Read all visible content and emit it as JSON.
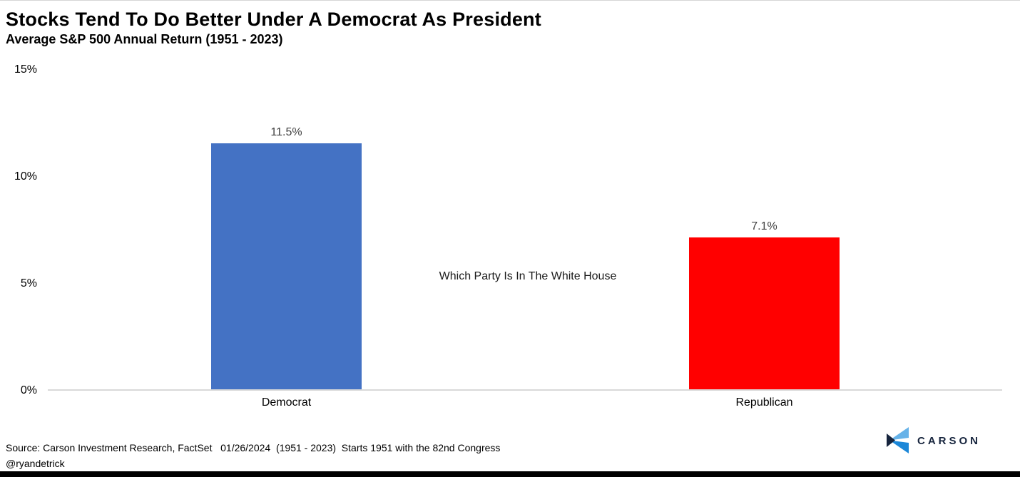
{
  "header": {
    "title": "Stocks Tend To Do Better Under A Democrat As President",
    "subtitle": "Average S&P 500 Annual Return (1951 - 2023)"
  },
  "chart_data": {
    "type": "bar",
    "categories": [
      "Democrat",
      "Republican"
    ],
    "values": [
      11.5,
      7.1
    ],
    "value_labels": [
      "11.5%",
      "7.1%"
    ],
    "bar_colors": [
      "#4472C4",
      "#FF0000"
    ],
    "title": "Stocks Tend To Do Better Under A Democrat As President",
    "subtitle": "Average S&P 500 Annual Return (1951 - 2023)",
    "xlabel": "",
    "ylabel": "",
    "ylim": [
      0,
      15
    ],
    "yticks": [
      "15%",
      "10%",
      "5%",
      "0%"
    ],
    "grid": false,
    "legend": "none",
    "annotation": "Which Party Is In The White House",
    "axis_line_color": "#D9D9D9",
    "value_label_color": "#404040"
  },
  "footer": {
    "source": "Source: Carson Investment Research, FactSet   01/26/2024  (1951 - 2023)  Starts 1951 with the 82nd Congress",
    "handle": "@ryandetrick",
    "logo_text": "CARSON"
  },
  "colors": {
    "democrat_blue": "#4472C4",
    "republican_red": "#FF0000",
    "carson_navy": "#16243D",
    "carson_light_blue": "#66B2E8",
    "carson_blue": "#1C87D8",
    "bottom_bar": "#000000"
  }
}
